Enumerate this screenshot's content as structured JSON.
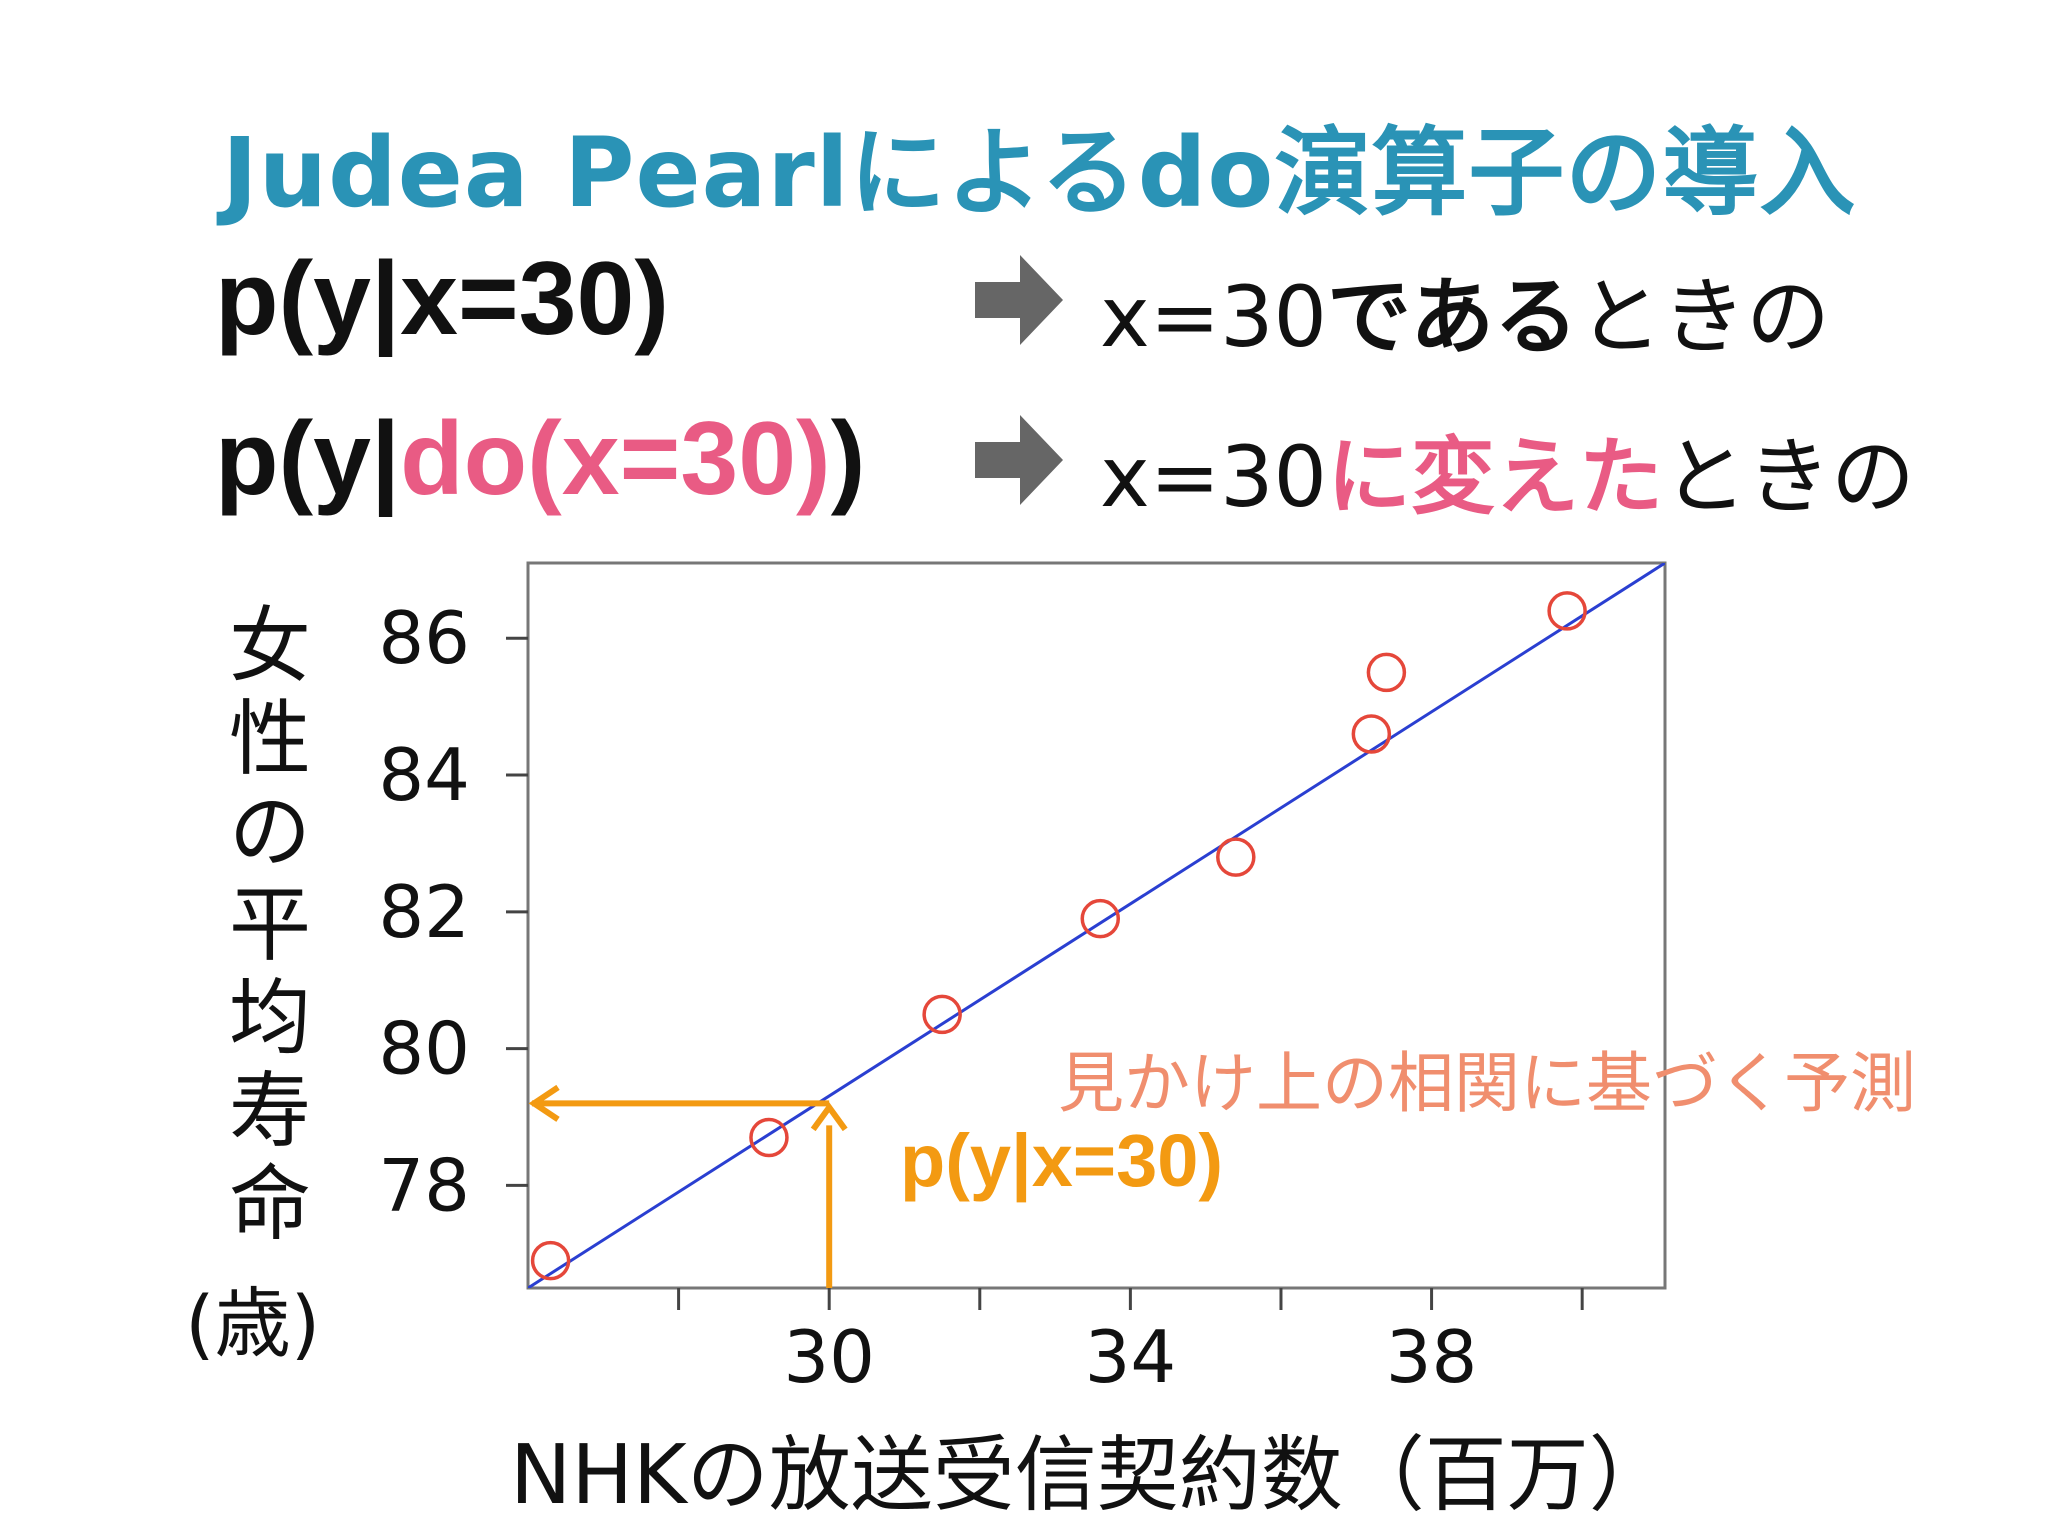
{
  "slide": {
    "title": "Judea Pearlによるdo演算子の導入",
    "row1": {
      "formula": "p(y|x=30)",
      "desc_prefix": "x=30",
      "desc_strong": "である",
      "desc_suffix": "ときの"
    },
    "row2": {
      "formula_prefix": "p(y|",
      "formula_highlight": "do(x=30)",
      "formula_suffix": ")",
      "desc_prefix": "x=30",
      "desc_highlight": "に変えた",
      "desc_suffix": "ときの"
    },
    "arrow_icon": "right-arrow-icon",
    "colors": {
      "title": "#2a93b6",
      "highlight": "#e95b84",
      "annotation": "#f08e6e",
      "prediction": "#f39a12",
      "points": "#e5473a",
      "regression": "#2a3fd1"
    }
  },
  "chart_data": {
    "type": "scatter",
    "ylabel_chars": [
      "女",
      "性",
      "の",
      "平",
      "均",
      "寿",
      "命"
    ],
    "ylabel_unit": "(歳)",
    "xlabel": "NHKの放送受信契約数（百万）",
    "x_ticks": [
      28,
      30,
      32,
      34,
      36,
      38,
      40
    ],
    "x_tick_labels": [
      {
        "value": 30,
        "label": "30"
      },
      {
        "value": 34,
        "label": "34"
      },
      {
        "value": 38,
        "label": "38"
      }
    ],
    "y_ticks": [
      {
        "value": 86,
        "label": "86"
      },
      {
        "value": 84,
        "label": "84"
      },
      {
        "value": 82,
        "label": "82"
      },
      {
        "value": 80,
        "label": "80"
      },
      {
        "value": 78,
        "label": "78"
      }
    ],
    "xlim": [
      26,
      41.1
    ],
    "ylim": [
      76.5,
      87.1
    ],
    "points": [
      {
        "x": 26.3,
        "y": 76.9
      },
      {
        "x": 29.2,
        "y": 78.7
      },
      {
        "x": 31.5,
        "y": 80.5
      },
      {
        "x": 33.6,
        "y": 81.9
      },
      {
        "x": 35.4,
        "y": 82.8
      },
      {
        "x": 37.2,
        "y": 84.6
      },
      {
        "x": 37.4,
        "y": 85.5
      },
      {
        "x": 39.8,
        "y": 86.4
      }
    ],
    "regression_line": {
      "x": [
        26,
        41.1
      ],
      "y": [
        76.5,
        87.1
      ]
    },
    "prediction": {
      "x": 30,
      "y": 79.2
    },
    "annotation_text": "見かけ上の相関に基づく予測",
    "prediction_label": "p(y|x=30)"
  }
}
